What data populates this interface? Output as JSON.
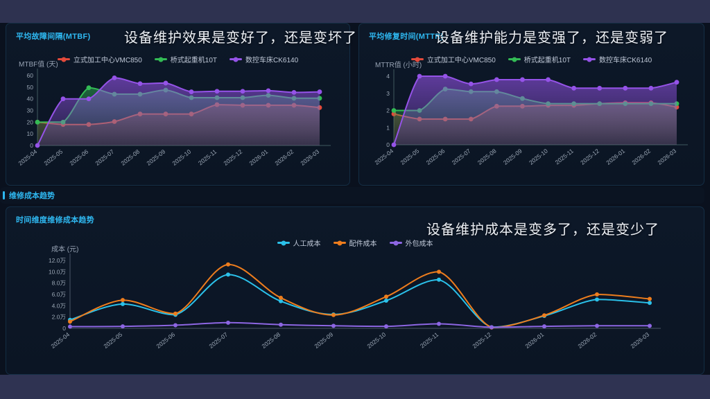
{
  "page": {
    "background": "#0a111e",
    "top_band_color": "#2e3250",
    "bottom_band_color": "#2f3352",
    "accent": "#2db7f0"
  },
  "panels": {
    "mtbf": {
      "title": "平均故障间隔(MTBF)",
      "headline": "设备维护效果是变好了，还是变坏了"
    },
    "mttr": {
      "title": "平均修复时间(MTTR)",
      "headline": "设备维护能力是变强了，还是变弱了"
    },
    "cost_section": {
      "title": "维修成本趋势"
    },
    "cost": {
      "title": "时间维度维修成本趋势",
      "headline": "设备维护成本是变多了，还是变少了"
    }
  },
  "chart_data": [
    {
      "id": "mtbf",
      "type": "line",
      "smooth": true,
      "area": true,
      "grid": false,
      "legend_position": "top-center",
      "title": "平均故障间隔(MTBF)",
      "xlabel": "",
      "ylabel": "MTBF值 (天)",
      "ylim": [
        0,
        60
      ],
      "yticks": [
        0,
        10,
        20,
        30,
        40,
        50,
        60
      ],
      "ytick_labels": [
        "0",
        "10",
        "20",
        "30",
        "40",
        "50",
        "60"
      ],
      "categories": [
        "2025-04",
        "2025-05",
        "2025-06",
        "2025-07",
        "2025-08",
        "2025-09",
        "2025-10",
        "2025-11",
        "2025-12",
        "2026-01",
        "2026-02",
        "2026-03"
      ],
      "series": [
        {
          "name": "立式加工中心VMC850",
          "color": "#e34a3b",
          "values": [
            20,
            18,
            18,
            20.5,
            27,
            27,
            27,
            35,
            34.5,
            34.5,
            34.5,
            32.5
          ]
        },
        {
          "name": "桥式起重机10T",
          "color": "#33bb55",
          "values": [
            20,
            20,
            49.5,
            44,
            44,
            47.5,
            41,
            41,
            41,
            43,
            40.5,
            40.5
          ]
        },
        {
          "name": "数控车床CK6140",
          "color": "#9553e8",
          "values": [
            0,
            40,
            40,
            58,
            53,
            53.5,
            46,
            46.5,
            46.5,
            47,
            45.5,
            46
          ]
        }
      ]
    },
    {
      "id": "mttr",
      "type": "line",
      "smooth": true,
      "area": true,
      "grid": false,
      "legend_position": "top-center",
      "title": "平均修复时间(MTTR)",
      "xlabel": "",
      "ylabel": "MTTR值 (小时)",
      "ylim": [
        0,
        4
      ],
      "yticks": [
        0,
        1,
        2,
        3,
        4
      ],
      "ytick_labels": [
        "0",
        "1",
        "2",
        "3",
        "4"
      ],
      "categories": [
        "2025-04",
        "2025-05",
        "2025-06",
        "2025-07",
        "2025-08",
        "2025-09",
        "2025-10",
        "2025-11",
        "2025-12",
        "2026-01",
        "2026-02",
        "2026-03"
      ],
      "series": [
        {
          "name": "立式加工中心VMC850",
          "color": "#e34a3b",
          "values": [
            1.8,
            1.5,
            1.5,
            1.5,
            2.25,
            2.25,
            2.3,
            2.3,
            2.4,
            2.45,
            2.45,
            2.2
          ]
        },
        {
          "name": "桥式起重机10T",
          "color": "#33bb55",
          "values": [
            2,
            2,
            3.25,
            3.1,
            3.1,
            2.7,
            2.4,
            2.4,
            2.4,
            2.4,
            2.4,
            2.4
          ]
        },
        {
          "name": "数控车床CK6140",
          "color": "#9553e8",
          "values": [
            0,
            4,
            4,
            3.55,
            3.8,
            3.8,
            3.8,
            3.3,
            3.3,
            3.3,
            3.3,
            3.65
          ]
        }
      ]
    },
    {
      "id": "cost",
      "type": "line",
      "smooth": true,
      "area": false,
      "grid": false,
      "legend_position": "top-center",
      "title": "时间维度维修成本趋势",
      "unit": "万元",
      "xlabel": "",
      "ylabel": "成本 (元)",
      "ylim": [
        0,
        12
      ],
      "yticks": [
        0,
        2,
        4,
        6,
        8,
        10,
        12
      ],
      "ytick_labels": [
        "0",
        "2.0万",
        "4.0万",
        "6.0万",
        "8.0万",
        "10.0万",
        "12.0万"
      ],
      "categories": [
        "2025-04",
        "2025-05",
        "2025-06",
        "2025-07",
        "2025-08",
        "2025-09",
        "2025-10",
        "2025-11",
        "2025-12",
        "2026-01",
        "2026-02",
        "2026-03"
      ],
      "series": [
        {
          "name": "人工成本",
          "color": "#2bc1ea",
          "values": [
            1.5,
            4.3,
            2.4,
            9.5,
            4.8,
            2.45,
            4.9,
            8.6,
            0.2,
            2.2,
            5.1,
            4.5
          ]
        },
        {
          "name": "配件成本",
          "color": "#ee7d1d",
          "values": [
            1.2,
            5.0,
            2.6,
            11.3,
            5.4,
            2.35,
            5.6,
            10.0,
            0.15,
            2.3,
            6.0,
            5.2
          ]
        },
        {
          "name": "外包成本",
          "color": "#8d66e3",
          "values": [
            0.3,
            0.35,
            0.55,
            1.0,
            0.65,
            0.45,
            0.35,
            0.8,
            0.2,
            0.35,
            0.45,
            0.45
          ]
        }
      ]
    }
  ]
}
